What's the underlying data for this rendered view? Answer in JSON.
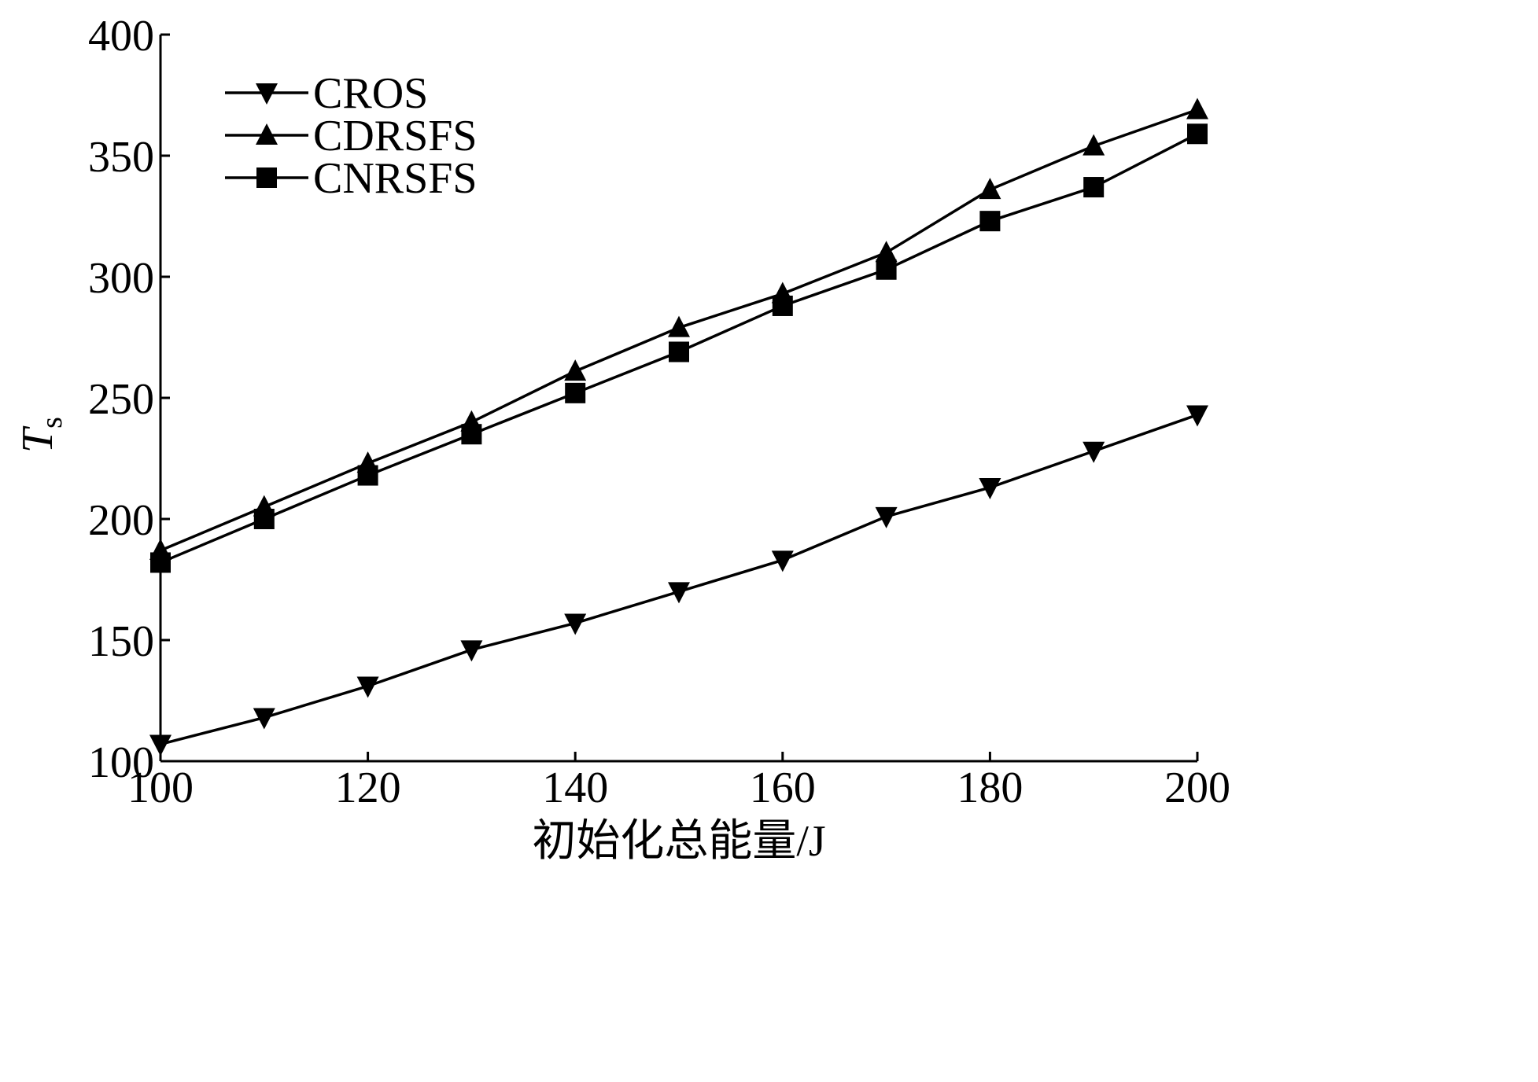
{
  "chart_data": {
    "type": "line",
    "title": "",
    "xlabel": "初始化总能量/J",
    "ylabel": {
      "main": "T",
      "sub": "s"
    },
    "xlim": [
      100,
      200
    ],
    "ylim": [
      100,
      400
    ],
    "x_ticks": [
      100,
      120,
      140,
      160,
      180,
      200
    ],
    "y_ticks": [
      100,
      150,
      200,
      250,
      300,
      350,
      400
    ],
    "grid": false,
    "legend_position": "top-left",
    "x": [
      100,
      110,
      120,
      130,
      140,
      150,
      160,
      170,
      180,
      190,
      200
    ],
    "series": [
      {
        "name": "CROS",
        "marker": "triangle-down",
        "color": "#000000",
        "values": [
          107,
          118,
          131,
          146,
          157,
          170,
          183,
          201,
          213,
          228,
          243
        ]
      },
      {
        "name": "CDRSFS",
        "marker": "triangle-up",
        "color": "#000000",
        "values": [
          187,
          205,
          223,
          240,
          261,
          279,
          293,
          310,
          336,
          354,
          369
        ]
      },
      {
        "name": "CNRSFS",
        "marker": "square",
        "color": "#000000",
        "values": [
          182,
          200,
          218,
          235,
          252,
          269,
          288,
          303,
          323,
          337,
          359
        ]
      }
    ]
  }
}
